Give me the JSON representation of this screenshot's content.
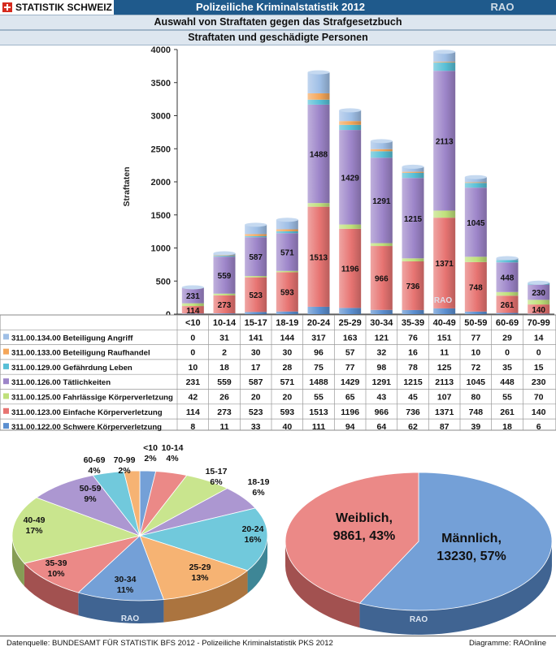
{
  "header": {
    "brand": "STATISTIK SCHWEIZ",
    "title": "Polizeiliche Kriminalstatistik 2012",
    "watermark": "RAO"
  },
  "subtitle1": "Auswahl von Straftaten gegen das Strafgesetzbuch",
  "subtitle2": "Straftaten und geschädigte Personen",
  "footer": {
    "source": "Datenquelle: BUNDESAMT FÜR STATISTIK BFS 2012 - Polizeiliche Kriminalstatistik PKS 2012",
    "credit": "Diagramme: RAOnline"
  },
  "chart_data": [
    {
      "type": "bar",
      "stacked": true,
      "ylabel": "Straftaten",
      "ylim": [
        0,
        4000
      ],
      "yticks": [
        0,
        500,
        1000,
        1500,
        2000,
        2500,
        3000,
        3500,
        4000
      ],
      "categories": [
        "<10",
        "10-14",
        "15-17",
        "18-19",
        "20-24",
        "25-29",
        "30-34",
        "35-39",
        "40-49",
        "50-59",
        "60-69",
        "70-99"
      ],
      "series": [
        {
          "name": "311.00.122.00 Schwere Körperverletzung",
          "color": "#5b8fd0",
          "values": [
            8,
            11,
            33,
            40,
            111,
            94,
            64,
            62,
            87,
            39,
            18,
            6
          ]
        },
        {
          "name": "311.00.123.00 Einfache Körperverletzung",
          "color": "#e77472",
          "values": [
            114,
            273,
            523,
            593,
            1513,
            1196,
            966,
            736,
            1371,
            748,
            261,
            140
          ]
        },
        {
          "name": "311.00.125.00 Fahrlässige Körperverletzung",
          "color": "#bfe07a",
          "values": [
            42,
            26,
            20,
            20,
            55,
            65,
            43,
            45,
            107,
            80,
            55,
            70
          ]
        },
        {
          "name": "311.00.126.00 Tätlichkeiten",
          "color": "#9d85c9",
          "values": [
            231,
            559,
            587,
            571,
            1488,
            1429,
            1291,
            1215,
            2113,
            1045,
            448,
            230
          ]
        },
        {
          "name": "311.00.129.00 Gefährdung Leben",
          "color": "#58bfd6",
          "values": [
            10,
            18,
            17,
            28,
            75,
            77,
            98,
            78,
            125,
            72,
            35,
            15
          ]
        },
        {
          "name": "311.00.133.00 Beteiligung Raufhandel",
          "color": "#f4a65a",
          "values": [
            0,
            2,
            30,
            30,
            96,
            57,
            32,
            16,
            11,
            10,
            0,
            0
          ]
        },
        {
          "name": "311.00.134.00 Beteiligung Angriff",
          "color": "#9fbfe6",
          "values": [
            0,
            31,
            141,
            144,
            317,
            163,
            121,
            76,
            151,
            77,
            29,
            14
          ]
        }
      ],
      "value_labels": {
        "Einfache Körperverletzung": true,
        "Tätlichkeiten": true
      },
      "legend_placement": "table below chart",
      "grid": false
    },
    {
      "type": "pie",
      "labels": [
        "<10",
        "10-14",
        "15-17",
        "18-19",
        "20-24",
        "25-29",
        "30-34",
        "35-39",
        "40-49",
        "50-59",
        "60-69",
        "70-99"
      ],
      "percents": [
        2,
        4,
        6,
        6,
        16,
        13,
        11,
        10,
        17,
        9,
        4,
        2
      ],
      "colors": [
        "#5b8fd0",
        "#e77472",
        "#bfe07a",
        "#9d85c9",
        "#58bfd6",
        "#f4a65a",
        "#5b8fd0",
        "#e77472",
        "#bfe07a",
        "#9d85c9",
        "#58bfd6",
        "#f4a65a"
      ]
    },
    {
      "type": "pie",
      "labels": [
        "Männlich, 13230, 57%",
        "Weiblich, 9861, 43%"
      ],
      "values": [
        13230,
        9861
      ],
      "percents": [
        57,
        43
      ],
      "colors": [
        "#5b8fd0",
        "#e77472"
      ]
    }
  ]
}
